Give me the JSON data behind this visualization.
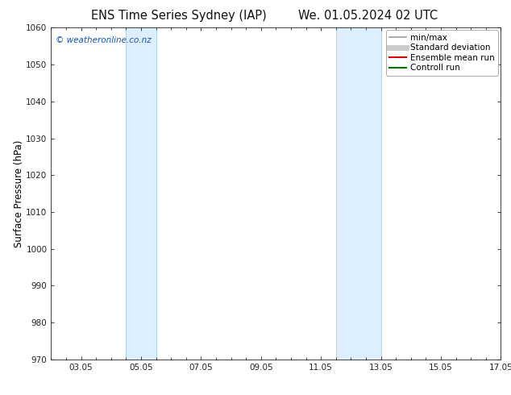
{
  "title_left": "ENS Time Series Sydney (IAP)",
  "title_right": "We. 01.05.2024 02 UTC",
  "ylabel": "Surface Pressure (hPa)",
  "ylim": [
    970,
    1060
  ],
  "yticks": [
    970,
    980,
    990,
    1000,
    1010,
    1020,
    1030,
    1040,
    1050,
    1060
  ],
  "xlim_start": 2.05,
  "xlim_end": 17.05,
  "xtick_labels": [
    "03.05",
    "05.05",
    "07.05",
    "09.05",
    "11.05",
    "13.05",
    "15.05",
    "17.05"
  ],
  "xtick_positions": [
    3.05,
    5.05,
    7.05,
    9.05,
    11.05,
    13.05,
    15.05,
    17.05
  ],
  "shaded_bands": [
    {
      "xmin": 4.55,
      "xmax": 5.55
    },
    {
      "xmin": 11.55,
      "xmax": 13.05
    }
  ],
  "shaded_color": "#ddeeff",
  "shaded_edge_color": "#b8d4ea",
  "watermark": "© weatheronline.co.nz",
  "watermark_color": "#1155bb",
  "legend_items": [
    {
      "label": "min/max",
      "color": "#999999",
      "lw": 1.2,
      "ls": "-"
    },
    {
      "label": "Standard deviation",
      "color": "#cccccc",
      "lw": 5,
      "ls": "-"
    },
    {
      "label": "Ensemble mean run",
      "color": "#dd0000",
      "lw": 1.5,
      "ls": "-"
    },
    {
      "label": "Controll run",
      "color": "#007700",
      "lw": 1.5,
      "ls": "-"
    }
  ],
  "bg_color": "#ffffff",
  "spine_color": "#222222",
  "tick_color": "#222222",
  "title_fontsize": 10.5,
  "axis_label_fontsize": 8.5,
  "tick_fontsize": 7.5,
  "legend_fontsize": 7.5,
  "watermark_fontsize": 7.5
}
